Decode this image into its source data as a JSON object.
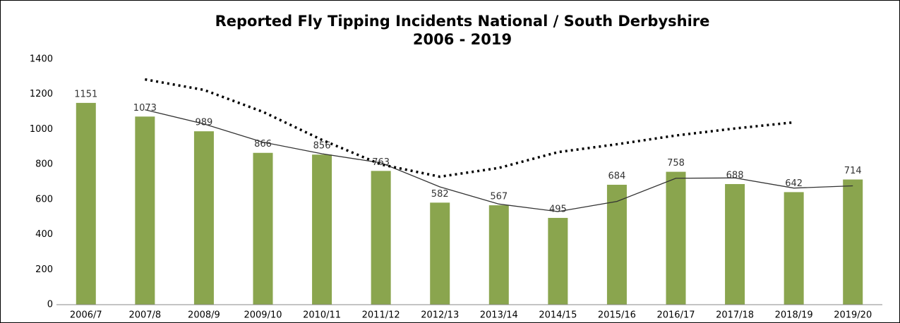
{
  "chart_data": {
    "type": "bar",
    "title": [
      "Reported Fly Tipping Incidents National / South Derbyshire",
      "2006 - 2019"
    ],
    "categories": [
      "2006/7",
      "2007/8",
      "2008/9",
      "2009/10",
      "2010/11",
      "2011/12",
      "2012/13",
      "2013/14",
      "2014/15",
      "2015/16",
      "2016/17",
      "2017/18",
      "2018/19",
      "2019/20"
    ],
    "series": [
      {
        "type": "bar",
        "color": "#8aa54e",
        "values": [
          1151,
          1073,
          989,
          866,
          856,
          763,
          582,
          567,
          495,
          684,
          758,
          688,
          642,
          714
        ],
        "data_labels": true
      },
      {
        "type": "line",
        "color": "#333333",
        "style": "solid",
        "values": [
          null,
          1112,
          1031,
          927,
          861,
          809,
          672,
          574,
          531,
          589,
          721,
          723,
          665,
          678
        ]
      },
      {
        "type": "line",
        "color": "#000000",
        "style": "dotted",
        "values": [
          null,
          1285,
          1225,
          1100,
          940,
          800,
          730,
          780,
          870,
          915,
          965,
          1005,
          1040,
          null
        ]
      }
    ],
    "ylim": [
      0,
      1400
    ],
    "yticks": [
      0,
      200,
      400,
      600,
      800,
      1000,
      1200,
      1400
    ],
    "grid": false
  }
}
